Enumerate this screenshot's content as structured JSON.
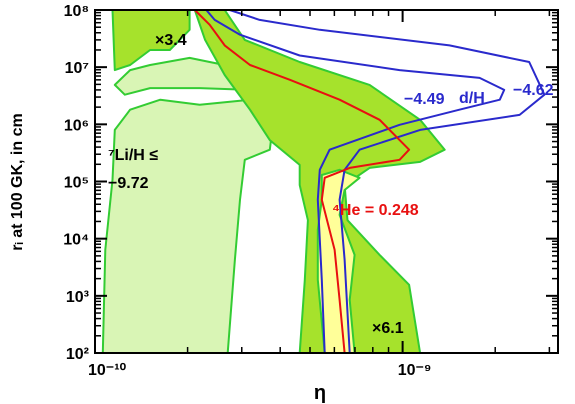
{
  "chart_data": {
    "type": "contour",
    "xlabel": "η",
    "ylabel": "rᵢ at 100 GK, in cm",
    "xscale": "log",
    "yscale": "log",
    "xlim": [
      1e-10,
      3.2e-09
    ],
    "ylim": [
      100,
      100000000
    ],
    "xticks": [
      {
        "value": 1e-10,
        "label": "10⁻¹⁰"
      },
      {
        "value": 1e-09,
        "label": "10⁻⁹"
      }
    ],
    "yticks": [
      {
        "value": 100,
        "label": "10²"
      },
      {
        "value": 1000,
        "label": "10³"
      },
      {
        "value": 10000,
        "label": "10⁴"
      },
      {
        "value": 100000,
        "label": "10⁵"
      },
      {
        "value": 1000000,
        "label": "10⁶"
      },
      {
        "value": 10000000,
        "label": "10⁷"
      },
      {
        "value": 100000000,
        "label": "10⁸"
      }
    ],
    "xminorticks": [
      2e-10,
      3e-10,
      4e-10,
      5e-10,
      6e-10,
      7e-10,
      8e-10,
      9e-10,
      2e-09,
      3e-09
    ],
    "yminorticks": [
      200,
      300,
      400,
      500,
      600,
      700,
      800,
      900,
      2000,
      3000,
      4000,
      5000,
      6000,
      7000,
      8000,
      9000,
      20000,
      30000,
      40000,
      50000,
      60000,
      70000,
      80000,
      90000,
      200000,
      300000,
      400000,
      500000,
      600000,
      700000,
      800000,
      900000,
      2000000,
      3000000,
      4000000,
      5000000,
      6000000,
      7000000,
      8000000,
      9000000,
      20000000,
      30000000,
      40000000,
      50000000,
      60000000,
      70000000,
      80000000,
      90000000
    ],
    "regions": [
      {
        "color": "#d9f5b5",
        "edge": "#33cc33",
        "x": [
          1.06e-10,
          1.08e-10,
          1.14e-10,
          1.16e-10,
          1.3e-10,
          1.63e-10,
          2.19e-10,
          3.19e-10,
          3.84e-10,
          3.7e-10,
          3.07e-10,
          2.96e-10,
          2.85e-10,
          2.7e-10
        ],
        "y": [
          100,
          6400,
          107000,
          800000,
          1800000,
          2700000,
          2200000,
          2700000,
          1800000,
          360000,
          240000,
          48000,
          4300,
          100
        ]
      },
      {
        "color": "#d9f5b5",
        "edge": "#33cc33",
        "x": [
          1.16e-10,
          1.3e-10,
          1.51e-10,
          2.03e-10,
          2.36e-10,
          3.19e-10,
          4.3e-10,
          4.3e-10,
          3.19e-10,
          2.19e-10,
          1.51e-10,
          1.25e-10
        ],
        "y": [
          4900000,
          8900000,
          10900000,
          14500000,
          12300000,
          8900000,
          7300000,
          4900000,
          4000000,
          4300000,
          4300000,
          3300000
        ]
      },
      {
        "color": "#a6e22c",
        "edge": "#33cc33",
        "x": [
          1.14e-10,
          2.03e-10,
          2.03e-10,
          1.75e-10,
          1.51e-10,
          1.3e-10,
          1.16e-10
        ],
        "y": [
          100000000,
          100000000,
          45000000,
          20000000,
          20000000,
          10900000,
          8900000
        ]
      },
      {
        "color": "#a6e22c",
        "edge": "#33cc33",
        "x": [
          2.64e-10,
          3.07e-10,
          4.63e-10,
          7.81e-10,
          1.14e-09,
          1.37e-09,
          1.14e-09,
          7.81e-10,
          6.48e-10,
          6.62e-10,
          8.42e-10,
          1.05e-09,
          1.14e-09,
          4.63e-10,
          4.81e-10,
          4.92e-10,
          4.63e-10,
          4.63e-10,
          3.7e-10,
          3.19e-10,
          2.64e-10,
          2.28e-10,
          2.11e-10
        ],
        "y": [
          100000000,
          30000000,
          12300000,
          4900000,
          1200000,
          360000,
          220000,
          173000,
          87000,
          21000,
          5200,
          1560,
          100,
          100,
          1900,
          21000,
          87000,
          195000,
          530000,
          1800000,
          7300000,
          30000000,
          100000000
        ]
      },
      {
        "color": "#ffff99",
        "edge": "#33cc33",
        "x": [
          5.46e-10,
          6.24e-10,
          7.25e-10,
          6.48e-10,
          6.24e-10,
          6.98e-10,
          6.73e-10,
          6.98e-10,
          5.58e-10,
          5.3e-10,
          5.3e-10,
          5.46e-10
        ],
        "y": [
          130000,
          160000,
          116000,
          71000,
          26000,
          5200,
          850,
          100,
          100,
          1900,
          14300,
          48000
        ]
      }
    ],
    "series": [
      {
        "color": "#2a2acc",
        "x": [
          2.3e-10,
          2.45e-10,
          2.96e-10,
          4.63e-10,
          9.78e-10,
          1.78e-09,
          2.14e-09,
          2.07e-09,
          1.53e-09,
          9.78e-10,
          5.79e-10,
          5.38e-10,
          5.3e-10,
          5.38e-10,
          5.46e-10,
          5.58e-10
        ],
        "y": [
          100000000,
          67000000,
          37000000,
          16000000,
          8900000,
          6500000,
          4000000,
          2700000,
          1800000,
          980000,
          360000,
          160000,
          48000,
          9500,
          1900,
          100
        ]
      },
      {
        "color": "#2a2acc",
        "x": [
          2.74e-10,
          3.43e-10,
          5.38e-10,
          1.42e-09,
          2.58e-09,
          2.89e-09,
          2.4e-09,
          1.14e-09,
          7.25e-10,
          6.48e-10,
          6.24e-10,
          6.48e-10,
          6.73e-10
        ],
        "y": [
          100000000,
          67000000,
          45000000,
          24000000,
          12300000,
          3300000,
          1460000,
          800000,
          360000,
          160000,
          48000,
          4300,
          100
        ]
      },
      {
        "color": "#e81010",
        "x": [
          2.11e-10,
          2.36e-10,
          2.64e-10,
          3.19e-10,
          4.3e-10,
          6.24e-10,
          8.42e-10,
          1.05e-09,
          9.78e-10,
          6.73e-10,
          5.58e-10,
          5.46e-10,
          6.01e-10,
          6.24e-10,
          6.48e-10
        ],
        "y": [
          100000000,
          55000000,
          24000000,
          10900000,
          6000000,
          2700000,
          1200000,
          360000,
          240000,
          173000,
          116000,
          48000,
          6400,
          850,
          100
        ]
      }
    ],
    "annotations": [
      {
        "text": "×3.4",
        "color": "#000000"
      },
      {
        "text": "⁷Li/H ≤",
        "color": "#000000"
      },
      {
        "text": "−9.72",
        "color": "#000000"
      },
      {
        "text": "d/H",
        "color": "#2a2acc"
      },
      {
        "text": "−4.49",
        "color": "#2a2acc"
      },
      {
        "text": "−4.62",
        "color": "#2a2acc"
      },
      {
        "text": "⁴He = 0.248",
        "color": "#e81010"
      },
      {
        "text": "×6.1",
        "color": "#000000"
      }
    ]
  }
}
